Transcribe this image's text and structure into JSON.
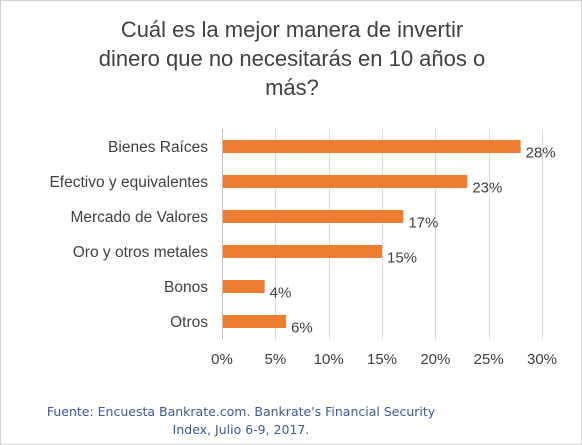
{
  "chart_data": {
    "type": "bar",
    "orientation": "horizontal",
    "title_lines": [
      "Cuál es la mejor manera de invertir",
      "dinero que no necesitarás en 10 años o",
      "más?"
    ],
    "categories": [
      "Bienes Raíces",
      "Efectivo y equivalentes",
      "Mercado de Valores",
      "Oro y otros metales",
      "Bonos",
      "Otros"
    ],
    "values": [
      28,
      23,
      17,
      15,
      4,
      6
    ],
    "value_labels": [
      "28%",
      "23%",
      "17%",
      "15%",
      "4%",
      "6%"
    ],
    "xlim": [
      0,
      30
    ],
    "x_ticks": [
      0,
      5,
      10,
      15,
      20,
      25,
      30
    ],
    "x_tick_labels": [
      "0%",
      "5%",
      "10%",
      "15%",
      "20%",
      "25%",
      "30%"
    ],
    "bar_color": "#ed7d31",
    "grid": true,
    "gridline_color": "#d9d9d9"
  },
  "source_lines": [
    "Fuente: Encuesta Bankrate.com. Bankrate's Financial Security",
    "Index, Julio 6-9, 2017."
  ]
}
